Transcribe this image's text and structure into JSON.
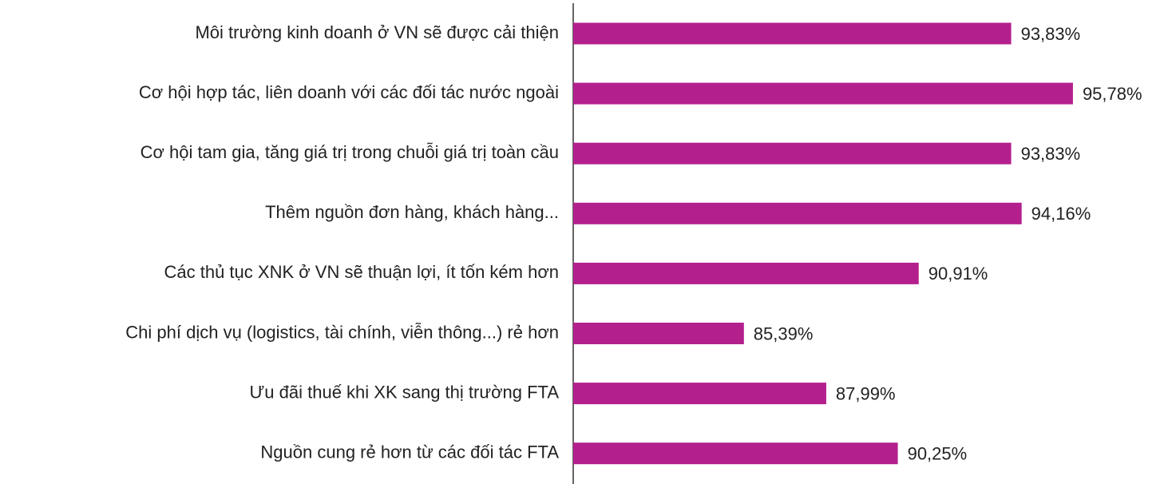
{
  "chart_data": {
    "type": "bar",
    "orientation": "horizontal",
    "categories": [
      "Môi trường kinh doanh ở VN sẽ được cải thiện",
      "Cơ hội hợp tác, liên doanh với các đối tác nước ngoài",
      "Cơ hội tam gia, tăng giá trị trong chuỗi giá trị toàn cầu",
      "Thêm nguồn đơn hàng, khách hàng...",
      "Các thủ tục XNK ở VN sẽ thuận lợi, ít tốn kém hơn",
      "Chi phí dịch vụ (logistics, tài chính, viễn thông...) rẻ hơn",
      "Ưu đãi thuế khi XK sang thị trường FTA",
      "Nguồn cung rẻ hơn từ các đối tác FTA"
    ],
    "values": [
      93.83,
      95.78,
      93.83,
      94.16,
      90.91,
      85.39,
      87.99,
      90.25
    ],
    "value_labels": [
      "93,83%",
      "95,78%",
      "93,83%",
      "94,16%",
      "90,91%",
      "85,39%",
      "87,99%",
      "90,25%"
    ],
    "color": "#b41f8e",
    "xlim": [
      80,
      98
    ]
  }
}
